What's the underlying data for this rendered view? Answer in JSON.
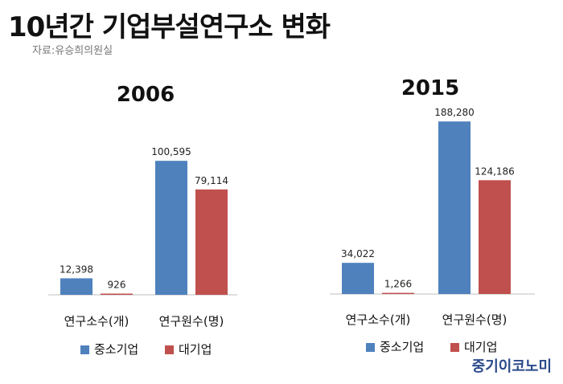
{
  "title": "10년간 기업부설연구소 변화",
  "source": "자료:유승희의원실",
  "logo": "중기이코노미",
  "colors": {
    "sme": "#4f81bd",
    "large": "#c0504d"
  },
  "chart_data": [
    {
      "type": "bar",
      "title": "2006",
      "categories": [
        "연구소수(개)",
        "연구원수(명)"
      ],
      "series": [
        {
          "name": "중소기업",
          "values": [
            12398,
            100595
          ],
          "labels": [
            "12,398",
            "100,595"
          ]
        },
        {
          "name": "대기업",
          "values": [
            926,
            79114
          ],
          "labels": [
            "926",
            "79,114"
          ]
        }
      ],
      "legend": "bottom"
    },
    {
      "type": "bar",
      "title": "2015",
      "categories": [
        "연구소수(개)",
        "연구원수(명)"
      ],
      "series": [
        {
          "name": "중소기업",
          "values": [
            34022,
            188280
          ],
          "labels": [
            "34,022",
            "188,280"
          ]
        },
        {
          "name": "대기업",
          "values": [
            1266,
            124186
          ],
          "labels": [
            "1,266",
            "124,186"
          ]
        }
      ],
      "legend": "bottom"
    }
  ]
}
